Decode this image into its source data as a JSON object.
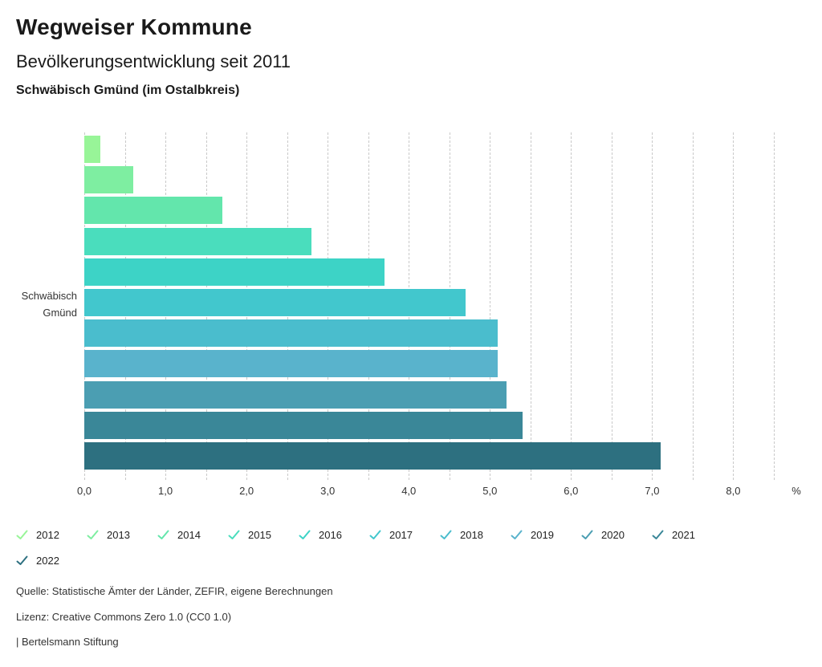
{
  "header": {
    "title": "Wegweiser Kommune",
    "subtitle": "Bevölkerungsentwicklung seit 2011",
    "region": "Schwäbisch Gmünd (im Ostalbkreis)"
  },
  "chart_data": {
    "type": "bar",
    "orientation": "horizontal",
    "title": "Bevölkerungsentwicklung seit 2011",
    "category": "Schwäbisch Gmünd",
    "category_label_lines": [
      "Schwäbisch",
      "Gmünd"
    ],
    "xlabel": "%",
    "xlim": [
      0,
      8.5
    ],
    "grid_step": 0.5,
    "tick_step": 1.0,
    "tick_labels": [
      "0,0",
      "1,0",
      "2,0",
      "3,0",
      "4,0",
      "5,0",
      "6,0",
      "7,0",
      "8,0"
    ],
    "axis_suffix": "%",
    "grid": true,
    "legend_position": "bottom",
    "series": [
      {
        "name": "2012",
        "value": 0.2,
        "color": "#98F598"
      },
      {
        "name": "2013",
        "value": 0.6,
        "color": "#7EEEA1"
      },
      {
        "name": "2014",
        "value": 1.7,
        "color": "#63E6AC"
      },
      {
        "name": "2015",
        "value": 2.8,
        "color": "#4ADDBD"
      },
      {
        "name": "2016",
        "value": 3.7,
        "color": "#3DD3C6"
      },
      {
        "name": "2017",
        "value": 4.7,
        "color": "#42C7CD"
      },
      {
        "name": "2018",
        "value": 5.1,
        "color": "#4ABDCD"
      },
      {
        "name": "2019",
        "value": 5.1,
        "color": "#59B3CC"
      },
      {
        "name": "2020",
        "value": 5.2,
        "color": "#4B9EB2"
      },
      {
        "name": "2021",
        "value": 5.4,
        "color": "#3A8798"
      },
      {
        "name": "2022",
        "value": 7.1,
        "color": "#2D7080"
      }
    ]
  },
  "footer": {
    "source": "Quelle: Statistische Ämter der Länder, ZEFIR, eigene Berechnungen",
    "license": "Lizenz: Creative Commons Zero 1.0 (CC0 1.0)",
    "attribution": "| Bertelsmann Stiftung"
  }
}
